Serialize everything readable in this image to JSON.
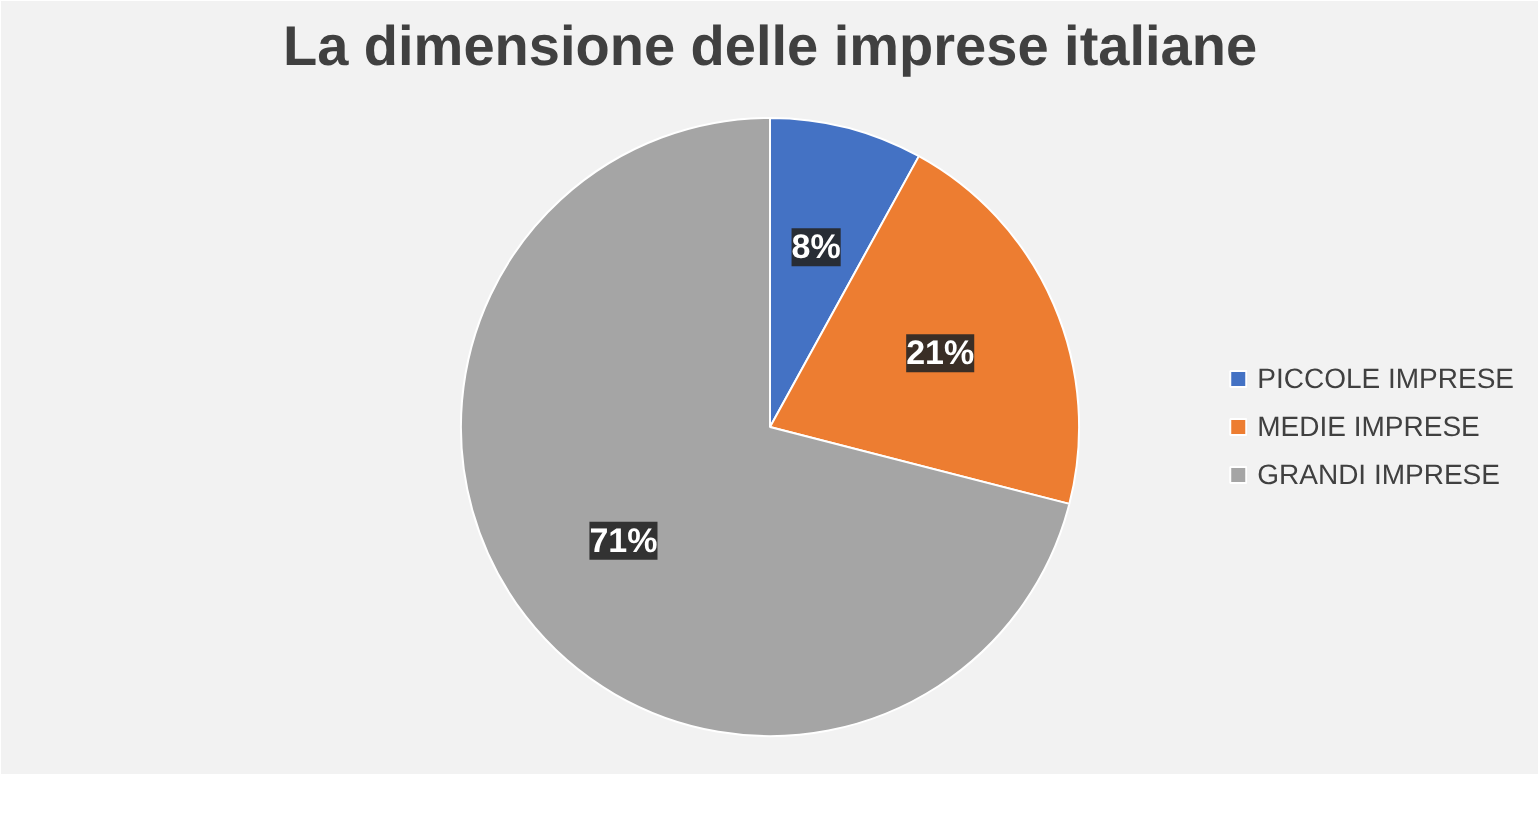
{
  "chart_data": {
    "type": "pie",
    "title": "La dimensione delle imprese italiane",
    "categories": [
      "PICCOLE IMPRESE",
      "MEDIE IMPRESE",
      "GRANDI IMPRESE"
    ],
    "values": [
      8,
      21,
      71
    ],
    "value_labels": [
      "8%",
      "21%",
      "71%"
    ],
    "colors": [
      "#4472c4",
      "#ed7d31",
      "#a5a5a5"
    ],
    "legend": "right"
  }
}
